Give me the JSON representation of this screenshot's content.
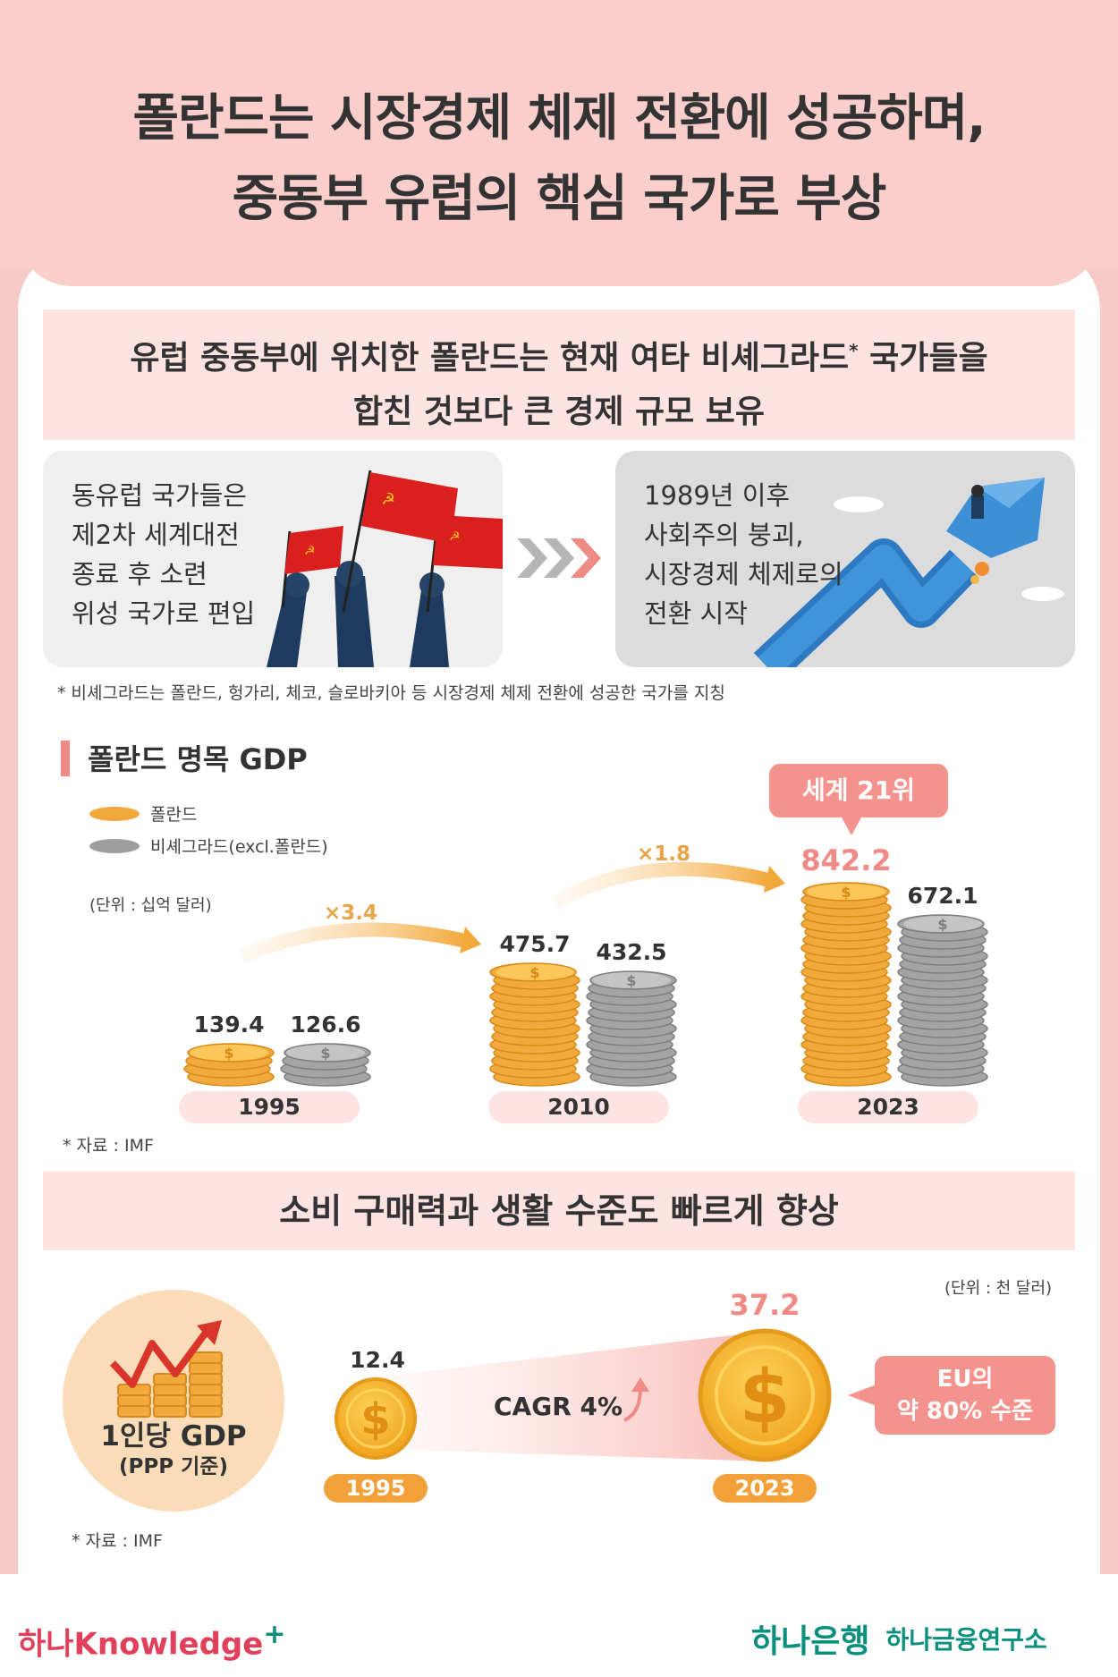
{
  "header": {
    "title_line1": "폴란드는 시장경제 체제 전환에 성공하며,",
    "title_line2": "중동부 유럽의 핵심 국가로 부상"
  },
  "banner1": {
    "line1_a": "유럽 중동부에 위치한 폴란드는 현재 여타 비셰그라드",
    "line1_sup": "*",
    "line1_b": " 국가들을",
    "line2": "합친 것보다 큰 경제 규모 보유"
  },
  "card_left": {
    "lines": [
      "동유럽 국가들은",
      "제2차 세계대전",
      "종료 후 소련",
      "위성 국가로 편입"
    ]
  },
  "card_right": {
    "lines": [
      "1989년 이후",
      "사회주의 붕괴,",
      "시장경제 체제로의",
      "전환 시작"
    ]
  },
  "footnote_visegrad": "* 비셰그라드는 폴란드, 헝가리, 체코, 슬로바키아 등 시장경제 체제 전환에 성공한 국가를 지칭",
  "gdp_section": {
    "title": "폴란드 명목 GDP",
    "legend": [
      {
        "label": "폴란드",
        "color": "#f2a93b"
      },
      {
        "label": "비셰그라드(excl.폴란드)",
        "color": "#9e9e9e"
      }
    ],
    "unit": "(단위 : 십억  달러)",
    "callout": "세계 21위",
    "source": "* 자료 : IMF"
  },
  "chart_data": {
    "type": "bar",
    "categories": [
      "1995",
      "2010",
      "2023"
    ],
    "series": [
      {
        "name": "폴란드",
        "values": [
          139.4,
          475.7,
          842.2
        ]
      },
      {
        "name": "비셰그라드(excl.폴란드)",
        "values": [
          126.6,
          432.5,
          672.1
        ]
      }
    ],
    "multipliers": [
      "×3.4",
      "×1.8"
    ],
    "value_labels_poland": [
      "139.4",
      "475.7",
      "842.2"
    ],
    "value_labels_visegrad": [
      "126.6",
      "432.5",
      "672.1"
    ]
  },
  "ppp_section": {
    "title": "소비 구매력과 생활 수준도 빠르게 향상",
    "unit": "(단위 : 천 달러)",
    "circle_line1": "1인당 GDP",
    "circle_line2": "(PPP 기준)",
    "value_1995": "12.4",
    "value_2023": "37.2",
    "year_1995": "1995",
    "year_2023": "2023",
    "cagr": "CAGR 4%",
    "eu_line1": "EU의",
    "eu_line2": "약 80% 수준",
    "source": "* 자료 : IMF"
  },
  "footer": {
    "brand_left": "하나Knowledge",
    "brand_left_plus": "+",
    "bank": "하나은행",
    "institute": "하나금융연구소"
  },
  "colors": {
    "accent_pink": "#f4938d",
    "gold": "#f2a93b",
    "silver": "#9e9e9e",
    "hana_green": "#0a8f7d"
  }
}
